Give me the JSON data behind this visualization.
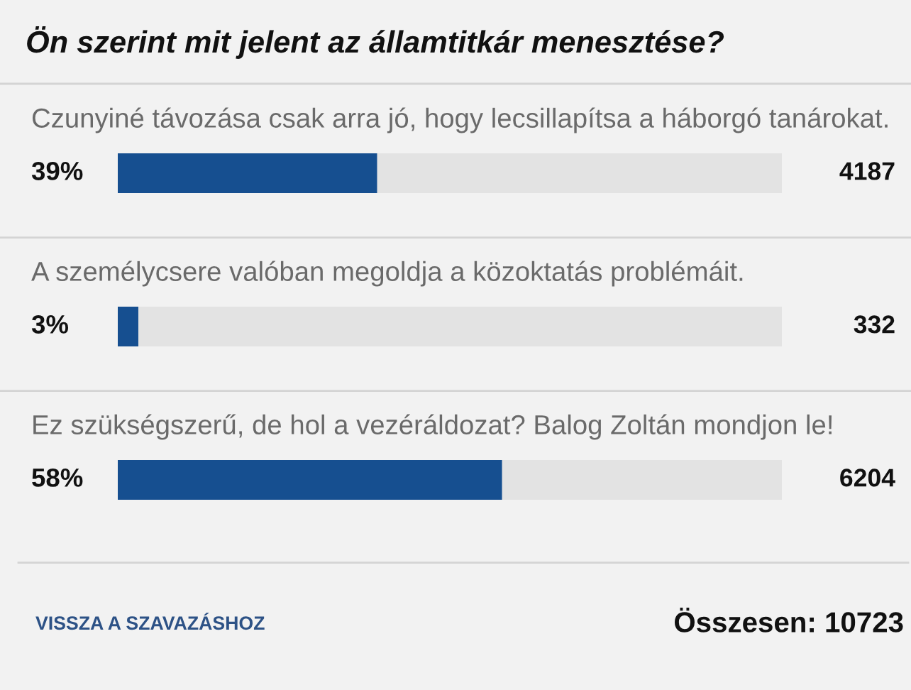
{
  "chart_data": {
    "type": "bar",
    "orientation": "horizontal",
    "title": "Ön szerint mit jelent az államtitkár menesztése?",
    "categories": [
      "Czunyiné távozása csak arra jó, hogy lecsillapítsa a háborgó tanárokat.",
      "A személycsere valóban megoldja a közoktatás problémáit.",
      "Ez szükségszerű, de hol a vezéráldozat? Balog Zoltán mondjon le!"
    ],
    "values": [
      4187,
      332,
      6204
    ],
    "color": "#164f90",
    "xlim": [
      0,
      10723
    ],
    "data_labels": true,
    "tick_labels": "y",
    "annotations": [
      "39%",
      "3%",
      "58%",
      "VISSZA A SZAVAZÁSHOZ",
      "Összesen: 10723"
    ]
  }
}
